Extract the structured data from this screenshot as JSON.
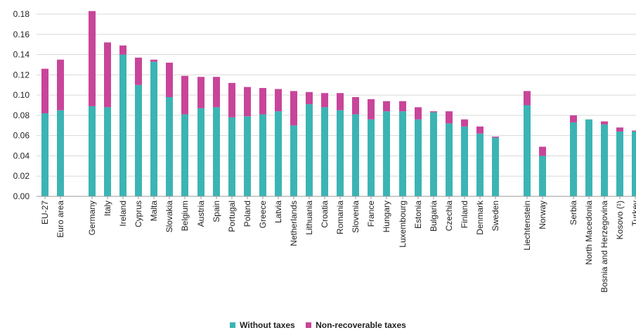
{
  "chart_data": {
    "type": "bar",
    "stacked": true,
    "title": "",
    "xlabel": "",
    "ylabel": "",
    "ylim": [
      0,
      0.18
    ],
    "yticks": [
      "0.00",
      "0.02",
      "0.04",
      "0.06",
      "0.08",
      "0.10",
      "0.12",
      "0.14",
      "0.16",
      "0.18"
    ],
    "grid": true,
    "legend_position": "bottom",
    "colors": {
      "without_taxes": "#3cb4b4",
      "non_recoverable_taxes": "#c8459a"
    },
    "series": [
      {
        "name": "Without taxes",
        "key": "without_taxes"
      },
      {
        "name": "Non-recoverable taxes",
        "key": "non_recoverable_taxes"
      }
    ],
    "bars": [
      {
        "category": "EU-27",
        "without_taxes": 0.082,
        "non_recoverable_taxes": 0.044
      },
      {
        "category": "Euro area",
        "without_taxes": 0.085,
        "non_recoverable_taxes": 0.05
      },
      {
        "category": "Germany",
        "without_taxes": 0.089,
        "non_recoverable_taxes": 0.094
      },
      {
        "category": "Italy",
        "without_taxes": 0.088,
        "non_recoverable_taxes": 0.064
      },
      {
        "category": "Ireland",
        "without_taxes": 0.14,
        "non_recoverable_taxes": 0.009
      },
      {
        "category": "Cyprus",
        "without_taxes": 0.11,
        "non_recoverable_taxes": 0.027
      },
      {
        "category": "Malta",
        "without_taxes": 0.133,
        "non_recoverable_taxes": 0.002
      },
      {
        "category": "Slovakia",
        "without_taxes": 0.098,
        "non_recoverable_taxes": 0.034
      },
      {
        "category": "Belgium",
        "without_taxes": 0.081,
        "non_recoverable_taxes": 0.038
      },
      {
        "category": "Austria",
        "without_taxes": 0.087,
        "non_recoverable_taxes": 0.031
      },
      {
        "category": "Spain",
        "without_taxes": 0.088,
        "non_recoverable_taxes": 0.03
      },
      {
        "category": "Portugal",
        "without_taxes": 0.078,
        "non_recoverable_taxes": 0.034
      },
      {
        "category": "Poland",
        "without_taxes": 0.079,
        "non_recoverable_taxes": 0.029
      },
      {
        "category": "Greece",
        "without_taxes": 0.081,
        "non_recoverable_taxes": 0.026
      },
      {
        "category": "Latvia",
        "without_taxes": 0.084,
        "non_recoverable_taxes": 0.022
      },
      {
        "category": "Netherlands",
        "without_taxes": 0.07,
        "non_recoverable_taxes": 0.034
      },
      {
        "category": "Lithuania",
        "without_taxes": 0.091,
        "non_recoverable_taxes": 0.012
      },
      {
        "category": "Croatia",
        "without_taxes": 0.088,
        "non_recoverable_taxes": 0.014
      },
      {
        "category": "Romania",
        "without_taxes": 0.085,
        "non_recoverable_taxes": 0.017
      },
      {
        "category": "Slovenia",
        "without_taxes": 0.081,
        "non_recoverable_taxes": 0.017
      },
      {
        "category": "France",
        "without_taxes": 0.076,
        "non_recoverable_taxes": 0.02
      },
      {
        "category": "Hungary",
        "without_taxes": 0.084,
        "non_recoverable_taxes": 0.01
      },
      {
        "category": "Luxembourg",
        "without_taxes": 0.084,
        "non_recoverable_taxes": 0.01
      },
      {
        "category": "Estonia",
        "without_taxes": 0.076,
        "non_recoverable_taxes": 0.012
      },
      {
        "category": "Bulgaria",
        "without_taxes": 0.083,
        "non_recoverable_taxes": 0.001
      },
      {
        "category": "Czechia",
        "without_taxes": 0.072,
        "non_recoverable_taxes": 0.012
      },
      {
        "category": "Finland",
        "without_taxes": 0.069,
        "non_recoverable_taxes": 0.007
      },
      {
        "category": "Denmark",
        "without_taxes": 0.062,
        "non_recoverable_taxes": 0.007
      },
      {
        "category": "Sweden",
        "without_taxes": 0.058,
        "non_recoverable_taxes": 0.001
      },
      {
        "category": "Liechtenstein",
        "without_taxes": 0.09,
        "non_recoverable_taxes": 0.014
      },
      {
        "category": "Norway",
        "without_taxes": 0.04,
        "non_recoverable_taxes": 0.009
      },
      {
        "category": "Serbia",
        "without_taxes": 0.073,
        "non_recoverable_taxes": 0.007
      },
      {
        "category": "North Macedonia",
        "without_taxes": 0.076,
        "non_recoverable_taxes": 0.0
      },
      {
        "category": "Bosnia and Herzegovina",
        "without_taxes": 0.071,
        "non_recoverable_taxes": 0.003
      },
      {
        "category": "Kosovo (¹)",
        "without_taxes": 0.064,
        "non_recoverable_taxes": 0.004
      },
      {
        "category": "Turkey",
        "without_taxes": 0.064,
        "non_recoverable_taxes": 0.001
      }
    ]
  }
}
